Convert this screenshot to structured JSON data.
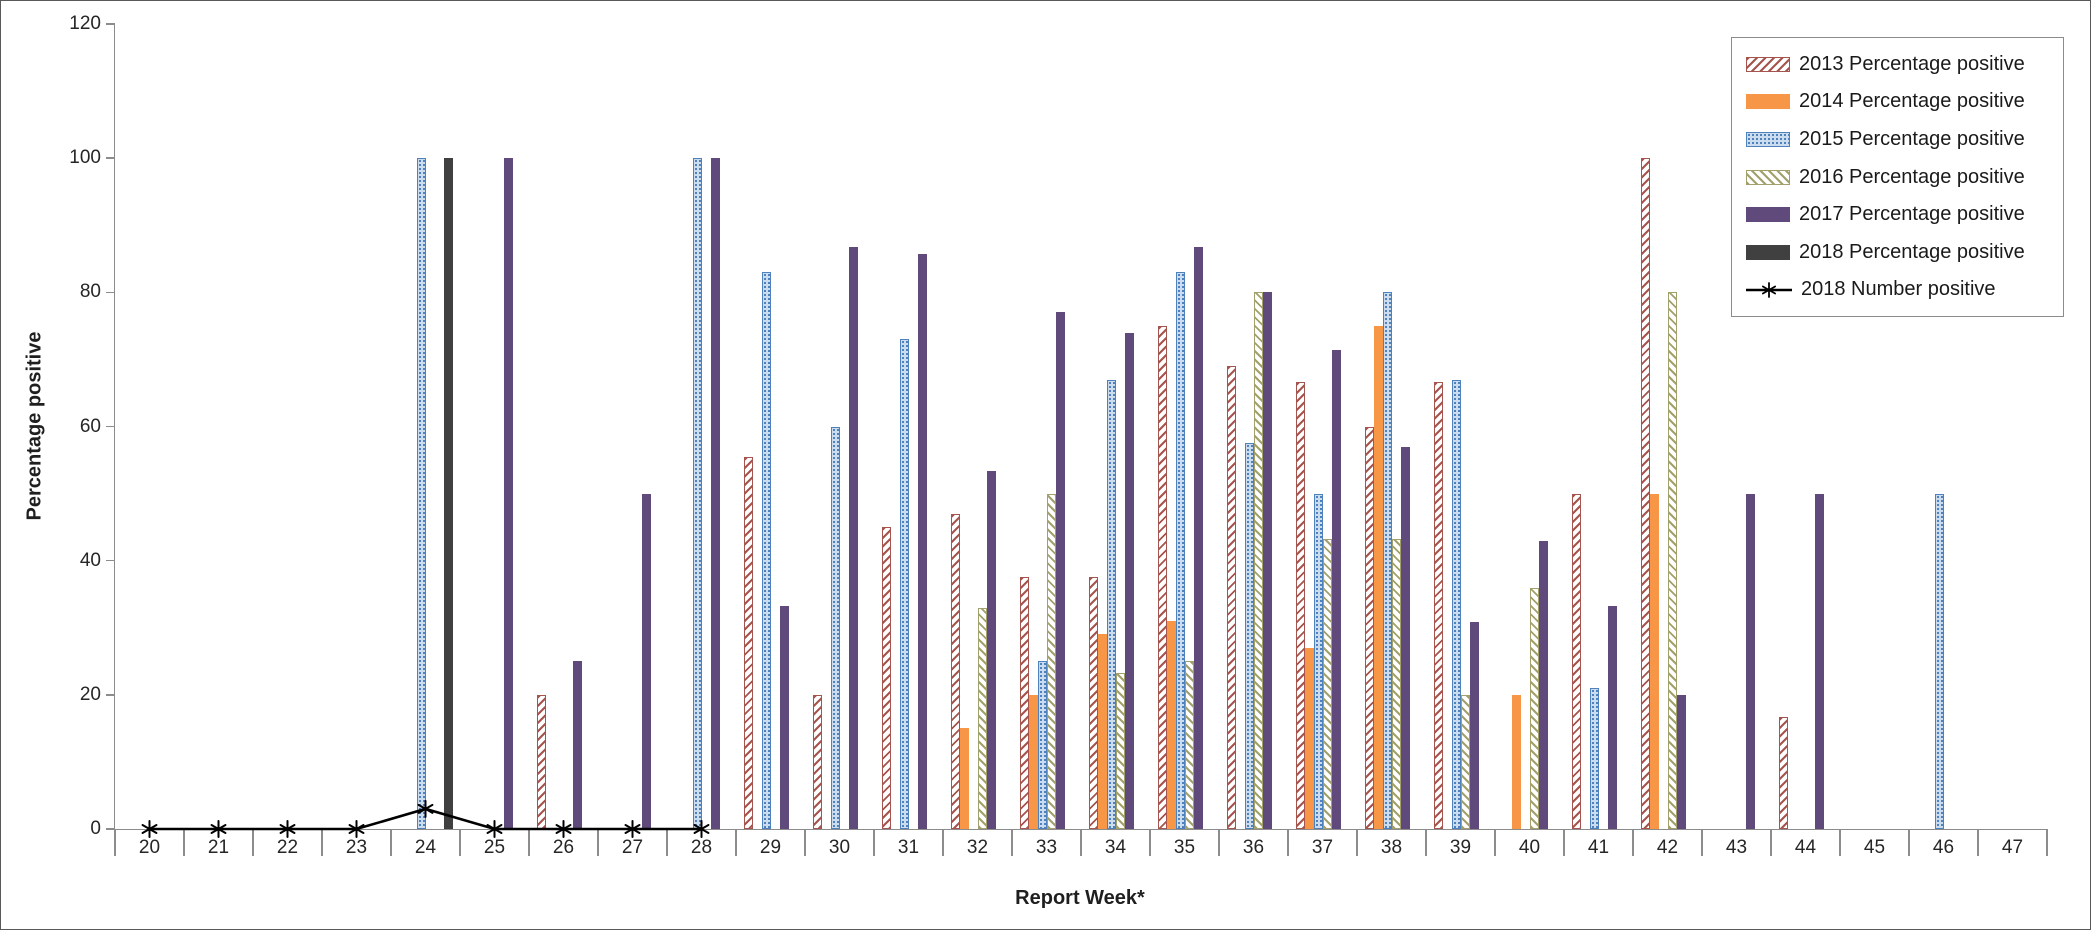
{
  "chart_data": {
    "type": "bar",
    "title": "",
    "xlabel": "Report Week*",
    "ylabel": "Percentage positive",
    "ylim": [
      0,
      120
    ],
    "y_ticks": [
      0,
      20,
      40,
      60,
      80,
      100,
      120
    ],
    "grid": false,
    "legend_position": "top-right",
    "categories": [
      20,
      21,
      22,
      23,
      24,
      25,
      26,
      27,
      28,
      29,
      30,
      31,
      32,
      33,
      34,
      35,
      36,
      37,
      38,
      39,
      40,
      41,
      42,
      43,
      44,
      45,
      46,
      47
    ],
    "series": [
      {
        "name": "2013 Percentage positive",
        "id": "2013-percentage-positive",
        "pattern": "hatch",
        "hatch_angle": 135,
        "color": "#A5544E",
        "bg": "#FFFFFF",
        "values": [
          null,
          null,
          null,
          null,
          null,
          null,
          20,
          null,
          null,
          55.5,
          20,
          45,
          47,
          37.5,
          37.5,
          75,
          69,
          66.7,
          60,
          66.7,
          null,
          50,
          100,
          null,
          16.7,
          null,
          null,
          null
        ]
      },
      {
        "name": "2014 Percentage positive",
        "id": "2014-percentage-positive",
        "pattern": "solid",
        "color": "#F79646",
        "values": [
          null,
          null,
          null,
          null,
          null,
          null,
          null,
          null,
          null,
          null,
          null,
          null,
          15,
          20,
          29,
          31,
          null,
          27,
          75,
          null,
          20,
          null,
          50,
          null,
          null,
          null,
          null,
          null
        ]
      },
      {
        "name": "2015 Percentage positive",
        "id": "2015-percentage-positive",
        "pattern": "dots",
        "color": "#4F81BD",
        "bg": "#CBDCEF",
        "values": [
          null,
          null,
          null,
          null,
          100,
          null,
          null,
          null,
          100,
          83,
          60,
          73,
          null,
          25,
          67,
          83,
          57.5,
          50,
          80,
          67,
          null,
          21,
          null,
          null,
          null,
          null,
          50,
          null
        ]
      },
      {
        "name": "2016 Percentage positive",
        "id": "2016-percentage-positive",
        "pattern": "hatch",
        "hatch_angle": 45,
        "color": "#A2A06B",
        "bg": "#FFFFFF",
        "values": [
          null,
          null,
          null,
          null,
          null,
          null,
          null,
          null,
          null,
          null,
          null,
          null,
          33,
          50,
          23.3,
          25,
          80,
          43.3,
          43.3,
          20,
          36,
          null,
          80,
          null,
          null,
          null,
          null,
          null
        ]
      },
      {
        "name": "2017 Percentage positive",
        "id": "2017-percentage-positive",
        "pattern": "solid",
        "color": "#604A7B",
        "values": [
          null,
          null,
          null,
          null,
          null,
          100,
          25,
          50,
          100,
          33.3,
          86.7,
          85.7,
          53.3,
          77,
          74,
          86.7,
          80,
          71.4,
          57,
          30.8,
          43,
          33.3,
          20,
          50,
          50,
          null,
          null,
          null
        ]
      },
      {
        "name": "2018 Percentage positive",
        "id": "2018-percentage-positive",
        "pattern": "solid",
        "color": "#404040",
        "values": [
          null,
          null,
          null,
          null,
          100,
          null,
          null,
          null,
          null,
          null,
          null,
          null,
          null,
          null,
          null,
          null,
          null,
          null,
          null,
          null,
          null,
          null,
          null,
          null,
          null,
          null,
          null,
          null
        ]
      },
      {
        "name": "2018 Number positive",
        "id": "2018-number-positive",
        "type": "line",
        "color": "#000000",
        "marker": "asterisk",
        "values": [
          0,
          0,
          0,
          0,
          3,
          0,
          0,
          0,
          0,
          null,
          null,
          null,
          null,
          null,
          null,
          null,
          null,
          null,
          null,
          null,
          null,
          null,
          null,
          null,
          null,
          null,
          null,
          null
        ]
      }
    ]
  }
}
